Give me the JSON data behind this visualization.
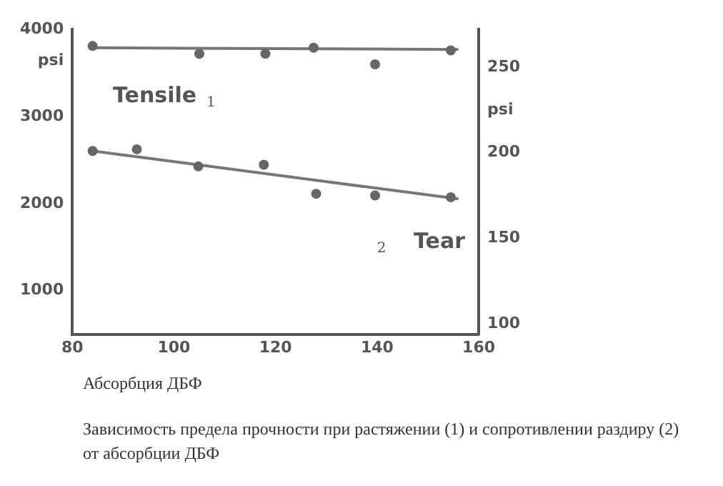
{
  "chart_data": {
    "type": "scatter",
    "xlabel": "Абсорбция ДБФ",
    "ylabel": "psi",
    "y2label": "psi",
    "xlim": [
      80,
      160
    ],
    "xticks": [
      80,
      100,
      120,
      140,
      160
    ],
    "ylim": [
      500,
      4000
    ],
    "yticks": [
      1000,
      2000,
      3000,
      4000
    ],
    "y2lim": [
      94,
      272
    ],
    "y2ticks": [
      100,
      150,
      200,
      250
    ],
    "grid": false,
    "marker": "circle",
    "series": [
      {
        "color": "#666666",
        "x": [
          84,
          105,
          118,
          127.5,
          139.6,
          154.5
        ],
        "values": [
          3810,
          3720,
          3720,
          3790,
          3600,
          3760
        ]
      },
      {
        "type": "line",
        "marker": "none",
        "color": "#777777",
        "x": [
          84,
          156
        ],
        "values": [
          3790,
          3770
        ]
      },
      {
        "axis": "y2",
        "color": "#666666",
        "x": [
          84,
          92.7,
          104.8,
          117.7,
          128,
          139.6,
          154.5
        ],
        "values": [
          201,
          202,
          192,
          193,
          176,
          175,
          174
        ]
      },
      {
        "type": "line",
        "marker": "none",
        "axis": "y2",
        "color": "#777777",
        "x": [
          84,
          156
        ],
        "values": [
          201,
          173
        ]
      }
    ],
    "annotations": [
      "Tensile",
      "1",
      "Tear",
      "2",
      "Зависимость предела прочности при растяжении (1) и сопротивлении раздиру (2) от абсорбции ДБФ"
    ]
  }
}
